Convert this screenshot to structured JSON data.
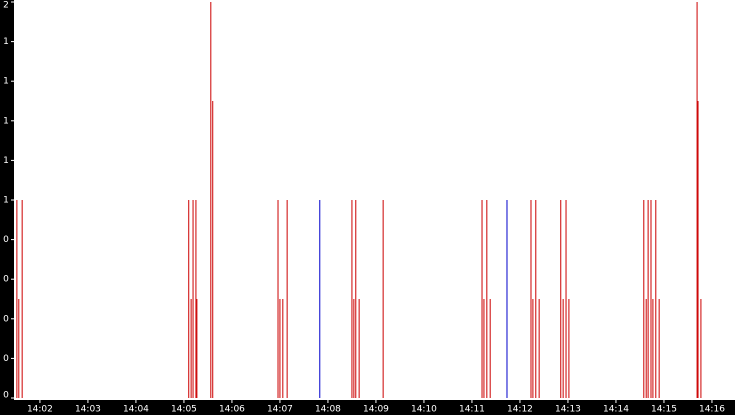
{
  "chart_data": {
    "type": "spike",
    "xlim": [
      841.46,
      856.48
    ],
    "xticks": [
      {
        "value": 842,
        "label": "14:02"
      },
      {
        "value": 843,
        "label": "14:03"
      },
      {
        "value": 844,
        "label": "14:04"
      },
      {
        "value": 845,
        "label": "14:05"
      },
      {
        "value": 846,
        "label": "14:06"
      },
      {
        "value": 847,
        "label": "14:07"
      },
      {
        "value": 848,
        "label": "14:08"
      },
      {
        "value": 849,
        "label": "14:09"
      },
      {
        "value": 850,
        "label": "14:10"
      },
      {
        "value": 851,
        "label": "14:11"
      },
      {
        "value": 852,
        "label": "14:12"
      },
      {
        "value": 853,
        "label": "14:13"
      },
      {
        "value": 854,
        "label": "14:14"
      },
      {
        "value": 855,
        "label": "14:15"
      },
      {
        "value": 856,
        "label": "14:16"
      }
    ],
    "ylim": [
      0,
      2
    ],
    "yticks": [
      {
        "value": 0,
        "label": "0"
      },
      {
        "value": 0.2,
        "label": "0"
      },
      {
        "value": 0.4,
        "label": "0"
      },
      {
        "value": 0.6,
        "label": "0"
      },
      {
        "value": 0.8,
        "label": "0"
      },
      {
        "value": 1,
        "label": "1"
      },
      {
        "value": 1.2,
        "label": "1"
      },
      {
        "value": 1.4,
        "label": "1"
      },
      {
        "value": 1.6,
        "label": "1"
      },
      {
        "value": 1.8,
        "label": "1"
      },
      {
        "value": 2,
        "label": "2"
      }
    ],
    "series": [
      {
        "color": "#cc0000",
        "x": [
          841.52,
          841.56,
          841.63,
          845.1,
          845.15,
          845.19,
          845.25,
          845.27,
          845.56,
          845.6,
          846.96,
          847.0,
          847.06,
          847.15,
          848.5,
          848.54,
          848.58,
          848.65,
          849.15,
          851.21,
          851.25,
          851.31,
          851.38,
          852.23,
          852.27,
          852.33,
          852.4,
          852.85,
          852.9,
          852.96,
          853.02,
          854.58,
          854.63,
          854.67,
          854.73,
          854.77,
          854.83,
          854.9,
          855.69,
          855.71,
          855.77
        ],
        "values": [
          1,
          0.5,
          1,
          1,
          0.5,
          1,
          1,
          0.5,
          2,
          1.5,
          1,
          0.5,
          0.5,
          1,
          1,
          0.5,
          1,
          0.5,
          1,
          1,
          0.5,
          1,
          0.5,
          1,
          0.5,
          1,
          0.5,
          1,
          0.5,
          1,
          0.5,
          1,
          0.5,
          1,
          1,
          0.5,
          1,
          0.5,
          2,
          1.5,
          0.5
        ]
      },
      {
        "color": "#0000cc",
        "x": [
          847.83,
          851.73
        ],
        "values": [
          1,
          1
        ]
      }
    ]
  }
}
